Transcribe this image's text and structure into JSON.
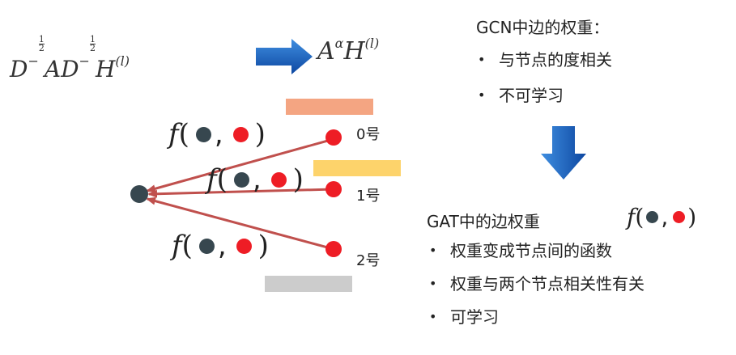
{
  "formulas": {
    "gcn_normalized": {
      "D1": "D",
      "exp_num": "1",
      "exp_den": "2",
      "A": "A",
      "D2": "D",
      "H": "H",
      "l": "(l)",
      "minus": "−"
    },
    "attention": {
      "A": "A",
      "alpha": "α",
      "H": "H",
      "l": "(l)"
    }
  },
  "gcn_section": {
    "title": "GCN中边的权重：",
    "bullets": [
      "与节点的度相关",
      "不可学习"
    ]
  },
  "gat_section": {
    "title": "GAT中的边权重",
    "bullets": [
      "权重变成节点间的函数",
      "权重与两个节点相关性有关",
      "可学习"
    ]
  },
  "nodes": {
    "labels": [
      "0号",
      "1号",
      "2号"
    ]
  },
  "function_expr": {
    "name": "f",
    "open": "(",
    "comma": ",",
    "close": ")"
  },
  "colors": {
    "arrow_blue": "#1565c0",
    "edge_red": "#c0504d",
    "node_red": "#ee1d25",
    "node_dark": "#37474f",
    "bar_orange": "#f4a582",
    "bar_yellow": "#fdd36b",
    "bar_gray": "#cccccc"
  }
}
